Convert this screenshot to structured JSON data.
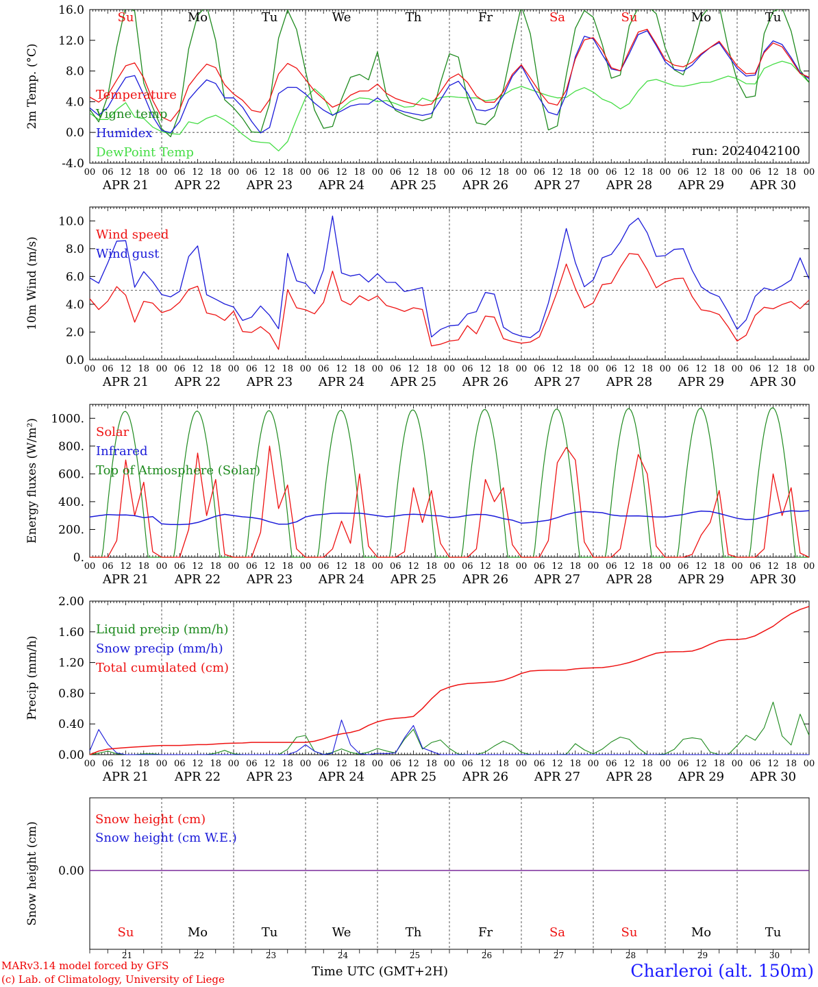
{
  "footer": {
    "credit_line1": "MARv3.14 model forced by GFS",
    "credit_line2": "(c) Lab. of Climatology, University of Liege",
    "xlabel": "Time UTC (GMT+2H)",
    "station": "Charleroi (alt. 150m)",
    "run": "run: 2024042100"
  },
  "colors": {
    "red": "#ee1111",
    "green": "#1e8a1e",
    "blue": "#1a1ad9",
    "light_green": "#44dd44",
    "purple": "#7a2a9a"
  },
  "time_axis": {
    "hour_ticks": [
      "00",
      "06",
      "12",
      "18"
    ],
    "dates": [
      "APR 21",
      "APR 22",
      "APR 23",
      "APR 24",
      "APR 25",
      "APR 26",
      "APR 27",
      "APR 28",
      "APR 29",
      "APR 30"
    ],
    "weekdays": [
      "Su",
      "Mo",
      "Tu",
      "We",
      "Th",
      "Fr",
      "Sa",
      "Su",
      "Mo",
      "Tu"
    ],
    "weekday_red": [
      true,
      false,
      false,
      false,
      false,
      false,
      true,
      true,
      false,
      false
    ],
    "day_numbers": [
      "21",
      "22",
      "23",
      "24",
      "25",
      "26",
      "27",
      "28",
      "29",
      "30"
    ],
    "days": 10,
    "step_hours": 3
  },
  "chart_data": [
    {
      "type": "line",
      "ylabel": "2m Temp. (°C)",
      "ylim": [
        -4,
        16
      ],
      "yticks": [
        "-4.0",
        "0.0",
        "4.0",
        "8.0",
        "12.0",
        "16.0"
      ],
      "ytick_values": [
        -4,
        0,
        4,
        8,
        12,
        16
      ],
      "reference_line": 0,
      "legend_position": "top-left",
      "series": [
        {
          "name": "Temperature",
          "color": "#ee1111",
          "values": [
            4.6,
            3.8,
            5.5,
            8.5,
            9.2,
            6.8,
            3.0,
            1.0,
            2.5,
            6.3,
            8.0,
            9.6,
            6.5,
            5.0,
            4.0,
            2.2,
            3.2,
            7.5,
            9.2,
            8.0,
            5.8,
            4.5,
            3.2,
            4.0,
            5.5,
            5.2,
            6.3,
            4.8,
            4.2,
            3.8,
            3.5,
            3.7,
            6.0,
            8.0,
            6.8,
            4.6,
            3.7,
            4.1,
            7.3,
            8.8,
            6.7,
            4.5,
            3.0,
            5.2,
            10.2,
            12.9,
            11.8,
            8.5,
            8.0,
            11.5,
            14.3,
            12.0,
            9.5,
            8.6,
            8.5,
            10.0,
            11.0,
            12.0,
            9.5,
            7.8,
            7.3,
            10.6,
            12.0,
            10.5,
            7.8,
            7.2
          ]
        },
        {
          "name": "Vigne temp",
          "color": "#1e8a1e",
          "values": [
            3.0,
            1.0,
            7.0,
            16.5,
            16.5,
            5.0,
            2.5,
            -1.5,
            1.5,
            11.5,
            16.5,
            16.5,
            4.5,
            3.2,
            1.5,
            -0.8,
            1.0,
            12.0,
            16.5,
            12.0,
            4.0,
            0.5,
            0.8,
            5.5,
            8.5,
            6.0,
            10.5,
            3.5,
            2.5,
            2.0,
            1.5,
            2.0,
            8.5,
            12.0,
            5.0,
            1.0,
            1.0,
            3.0,
            10.0,
            16.5,
            12.0,
            1.5,
            -1.2,
            7.0,
            14.5,
            16.5,
            13.5,
            7.0,
            7.5,
            16.0,
            16.5,
            16.5,
            11.0,
            7.5,
            7.5,
            14.5,
            16.5,
            16.5,
            8.5,
            5.0,
            3.5,
            13.5,
            16.5,
            16.0,
            8.5,
            6.5
          ]
        },
        {
          "name": "Humidex",
          "color": "#1a1ad9",
          "values": [
            3.2,
            2.0,
            4.0,
            7.0,
            7.6,
            4.5,
            1.0,
            -0.5,
            1.0,
            4.5,
            6.0,
            7.5,
            4.5,
            4.5,
            3.0,
            0.5,
            -0.8,
            5.0,
            6.0,
            5.8,
            4.2,
            3.0,
            2.2,
            3.0,
            3.8,
            3.5,
            4.5,
            3.5,
            2.8,
            2.5,
            2.2,
            2.5,
            5.0,
            7.2,
            5.5,
            2.8,
            2.8,
            3.5,
            7.0,
            8.7,
            6.0,
            3.5,
            1.5,
            4.6,
            10.6,
            13.4,
            11.0,
            8.3,
            8.0,
            11.0,
            14.1,
            11.8,
            9.2,
            8.0,
            8.0,
            9.8,
            11.0,
            11.8,
            9.2,
            7.5,
            7.0,
            10.8,
            12.3,
            10.8,
            8.0,
            7.0
          ]
        },
        {
          "name": "DewPoint Temp",
          "color": "#44dd44",
          "values": [
            2.5,
            1.5,
            1.8,
            4.5,
            2.0,
            1.8,
            0.2,
            0.0,
            -0.5,
            1.5,
            1.0,
            2.5,
            1.8,
            0.8,
            -0.5,
            -1.5,
            -1.0,
            -2.5,
            -1.0,
            3.0,
            6.0,
            5.0,
            2.0,
            3.5,
            4.5,
            4.5,
            4.0,
            4.2,
            3.5,
            3.0,
            4.5,
            4.0,
            4.8,
            4.6,
            4.5,
            4.5,
            4.0,
            4.5,
            5.5,
            6.0,
            5.5,
            5.0,
            4.5,
            4.5,
            5.5,
            6.0,
            4.5,
            4.0,
            3.0,
            4.0,
            6.5,
            7.0,
            6.5,
            6.0,
            6.0,
            6.5,
            6.5,
            7.0,
            7.5,
            6.5,
            6.0,
            8.5,
            9.0,
            9.5,
            8.0,
            6.5
          ]
        }
      ]
    },
    {
      "type": "line",
      "ylabel": "10m Wind (m/s)",
      "ylim": [
        0,
        11
      ],
      "yticks": [
        "0.0",
        "2.0",
        "4.0",
        "6.0",
        "8.0",
        "10.0"
      ],
      "ytick_values": [
        0,
        2,
        4,
        6,
        8,
        10
      ],
      "reference_line": 5,
      "legend_position": "top-left",
      "series": [
        {
          "name": "Wind speed",
          "color": "#ee1111",
          "values": [
            4.4,
            3.6,
            3.7,
            5.1,
            5.4,
            4.4,
            2.6,
            4.2,
            4.3,
            3.6,
            3.2,
            3.8,
            4.2,
            5.0,
            6.0,
            3.2,
            3.6,
            3.0,
            2.8,
            3.5,
            2.0,
            2.2,
            1.6,
            3.0,
            1.5,
            0.7,
            5.2,
            4.0,
            3.2,
            4.0,
            3.0,
            4.3,
            6.5,
            4.6,
            3.3,
            4.8,
            4.5,
            4.2,
            4.6,
            4.0,
            3.5,
            4.1,
            3.0,
            4.0,
            3.6,
            1.0,
            1.0,
            1.4,
            1.3,
            1.5,
            2.6,
            1.8,
            3.0,
            3.6,
            2.4,
            1.0,
            1.4,
            1.2,
            1.3,
            1.2,
            2.4,
            3.8,
            5.3,
            7.0,
            5.3,
            4.0,
            3.2,
            5.0,
            5.6,
            5.5,
            6.6,
            7.6,
            7.8,
            7.3,
            6.0,
            5.0,
            5.6,
            5.7,
            6.4,
            5.0,
            4.2,
            3.4,
            3.5,
            3.3,
            3.0,
            1.0,
            1.7,
            1.8,
            3.4,
            3.8,
            3.5,
            4.2,
            3.7,
            4.5,
            3.5,
            4.3
          ]
        },
        {
          "name": "Wind gust",
          "color": "#1a1ad9",
          "values": [
            5.9,
            5.4,
            6.0,
            8.6,
            8.5,
            8.6,
            5.0,
            6.4,
            6.0,
            4.8,
            4.6,
            4.5,
            5.0,
            7.3,
            9.4,
            4.6,
            4.8,
            4.1,
            4.0,
            3.8,
            2.8,
            3.0,
            3.2,
            4.4,
            2.8,
            2.2,
            7.9,
            6.0,
            5.0,
            6.0,
            4.2,
            6.8,
            10.6,
            6.6,
            5.2,
            7.1,
            5.6,
            5.6,
            6.2,
            5.6,
            5.5,
            5.7,
            4.3,
            5.3,
            5.2,
            1.6,
            2.0,
            2.6,
            2.3,
            2.6,
            3.4,
            3.4,
            4.6,
            5.6,
            3.6,
            1.6,
            2.0,
            1.7,
            1.6,
            1.6,
            2.9,
            5.0,
            7.2,
            9.6,
            7.2,
            5.6,
            4.5,
            7.0,
            7.5,
            7.6,
            8.4,
            9.5,
            10.2,
            10.2,
            8.5,
            7.2,
            7.5,
            7.8,
            8.6,
            7.0,
            6.0,
            5.0,
            4.8,
            4.6,
            4.2,
            1.8,
            2.6,
            3.0,
            4.8,
            5.2,
            4.8,
            5.6,
            5.0,
            6.2,
            7.6,
            5.8
          ]
        }
      ]
    },
    {
      "type": "line",
      "ylabel": "Energy fluxes (W/m²)",
      "ylim": [
        0,
        1100
      ],
      "yticks": [
        "0.",
        "200.",
        "400.",
        "600.",
        "800.",
        "1000."
      ],
      "ytick_values": [
        0,
        200,
        400,
        600,
        800,
        1000
      ],
      "legend_position": "top-left",
      "toa_peaks": [
        1050,
        1052,
        1055,
        1058,
        1061,
        1064,
        1067,
        1070,
        1073,
        1076
      ],
      "series": [
        {
          "name": "Solar",
          "color": "#ee1111",
          "values": [
            0,
            0,
            0,
            120,
            700,
            300,
            540,
            40,
            0,
            0,
            0,
            200,
            750,
            300,
            560,
            20,
            0,
            0,
            0,
            180,
            800,
            350,
            520,
            60,
            0,
            0,
            0,
            60,
            260,
            100,
            600,
            80,
            0,
            0,
            0,
            40,
            500,
            250,
            480,
            100,
            0,
            0,
            0,
            60,
            560,
            400,
            500,
            90,
            0,
            0,
            0,
            120,
            680,
            790,
            700,
            110,
            0,
            0,
            0,
            60,
            400,
            740,
            600,
            80,
            0,
            0,
            0,
            20,
            160,
            250,
            480,
            20,
            0,
            0,
            0,
            60,
            600,
            300,
            500,
            30,
            0
          ]
        },
        {
          "name": "Infrared",
          "color": "#1a1ad9",
          "values": [
            290,
            300,
            310,
            300,
            310,
            280,
            300,
            240,
            235,
            235,
            240,
            260,
            290,
            310,
            300,
            290,
            285,
            270,
            240,
            235,
            250,
            290,
            305,
            310,
            320,
            315,
            320,
            310,
            300,
            290,
            300,
            310,
            310,
            300,
            300,
            285,
            290,
            305,
            310,
            305,
            280,
            270,
            245,
            250,
            260,
            270,
            300,
            320,
            330,
            325,
            320,
            300,
            295,
            300,
            295,
            290,
            290,
            300,
            310,
            330,
            335,
            320,
            300,
            280,
            270,
            275,
            300,
            320,
            335,
            330,
            335
          ]
        },
        {
          "name": "Top of Atmosphere (Solar)",
          "color": "#1e8a1e",
          "values": []
        }
      ]
    },
    {
      "type": "line",
      "ylabel": "Precip (mm/h)",
      "ylim": [
        0,
        2.0
      ],
      "yticks": [
        "0.00",
        "0.40",
        "0.80",
        "1.20",
        "1.60",
        "2.00"
      ],
      "ytick_values": [
        0,
        0.4,
        0.8,
        1.2,
        1.6,
        2.0
      ],
      "legend_position": "top-left",
      "series": [
        {
          "name": "Liquid precip (mm/h)",
          "color": "#1e8a1e",
          "values": [
            0,
            0.02,
            0.05,
            0,
            0,
            0,
            0.02,
            0,
            0,
            0,
            0,
            0,
            0,
            0.02,
            0.06,
            0,
            0,
            0,
            0,
            0,
            0,
            0.2,
            0.3,
            0.05,
            0,
            0.03,
            0.08,
            0.02,
            0,
            0.05,
            0.1,
            0,
            0.05,
            0.45,
            0.05,
            0.15,
            0.2,
            0.08,
            0,
            0,
            0,
            0.05,
            0.15,
            0.2,
            0.05,
            0,
            0,
            0,
            0,
            0,
            0.15,
            0.05,
            0,
            0.1,
            0.2,
            0.25,
            0.15,
            0,
            0,
            0,
            0.05,
            0.2,
            0.22,
            0.2,
            0,
            0,
            0,
            0.2,
            0.3,
            0.05,
            0.85,
            0.3,
            0.05,
            0.55,
            0.25
          ]
        },
        {
          "name": "Snow precip (mm/h)",
          "color": "#1a1ad9",
          "values": [
            0.05,
            0.35,
            0.1,
            0,
            0,
            0,
            0,
            0,
            0,
            0,
            0,
            0,
            0,
            0,
            0,
            0,
            0,
            0,
            0,
            0,
            0,
            0,
            0.15,
            0.05,
            0,
            0.02,
            0.5,
            0.05,
            0,
            0,
            0.03,
            0,
            0.05,
            0.5,
            0.1,
            0.05,
            0,
            0,
            0,
            0,
            0,
            0,
            0,
            0,
            0,
            0,
            0,
            0,
            0,
            0,
            0,
            0,
            0,
            0,
            0,
            0,
            0,
            0,
            0,
            0,
            0,
            0,
            0,
            0,
            0,
            0,
            0,
            0,
            0,
            0,
            0,
            0,
            0,
            0,
            0
          ]
        },
        {
          "name": "Total cumulated (cm)",
          "color": "#ee1111",
          "values": [
            0.0,
            0.06,
            0.08,
            0.09,
            0.1,
            0.11,
            0.12,
            0.12,
            0.12,
            0.13,
            0.13,
            0.14,
            0.15,
            0.15,
            0.16,
            0.16,
            0.16,
            0.16,
            0.16,
            0.16,
            0.2,
            0.25,
            0.28,
            0.3,
            0.38,
            0.44,
            0.47,
            0.48,
            0.5,
            0.65,
            0.82,
            0.88,
            0.92,
            0.93,
            0.94,
            0.95,
            0.98,
            1.05,
            1.09,
            1.1,
            1.1,
            1.1,
            1.12,
            1.13,
            1.13,
            1.15,
            1.18,
            1.22,
            1.28,
            1.33,
            1.34,
            1.34,
            1.35,
            1.4,
            1.48,
            1.5,
            1.5,
            1.52,
            1.6,
            1.68,
            1.8,
            1.88,
            1.93
          ]
        }
      ]
    },
    {
      "type": "line",
      "ylabel": "Snow height (cm)",
      "yticks": [
        "0.00"
      ],
      "ytick_values": [
        0
      ],
      "legend_position": "top-left",
      "series": [
        {
          "name": "Snow height (cm)",
          "color": "#ee1111",
          "values": [
            0,
            0
          ]
        },
        {
          "name": "Snow height (cm W.E.)",
          "color": "#1a1ad9",
          "values": [
            0,
            0
          ]
        }
      ]
    }
  ]
}
